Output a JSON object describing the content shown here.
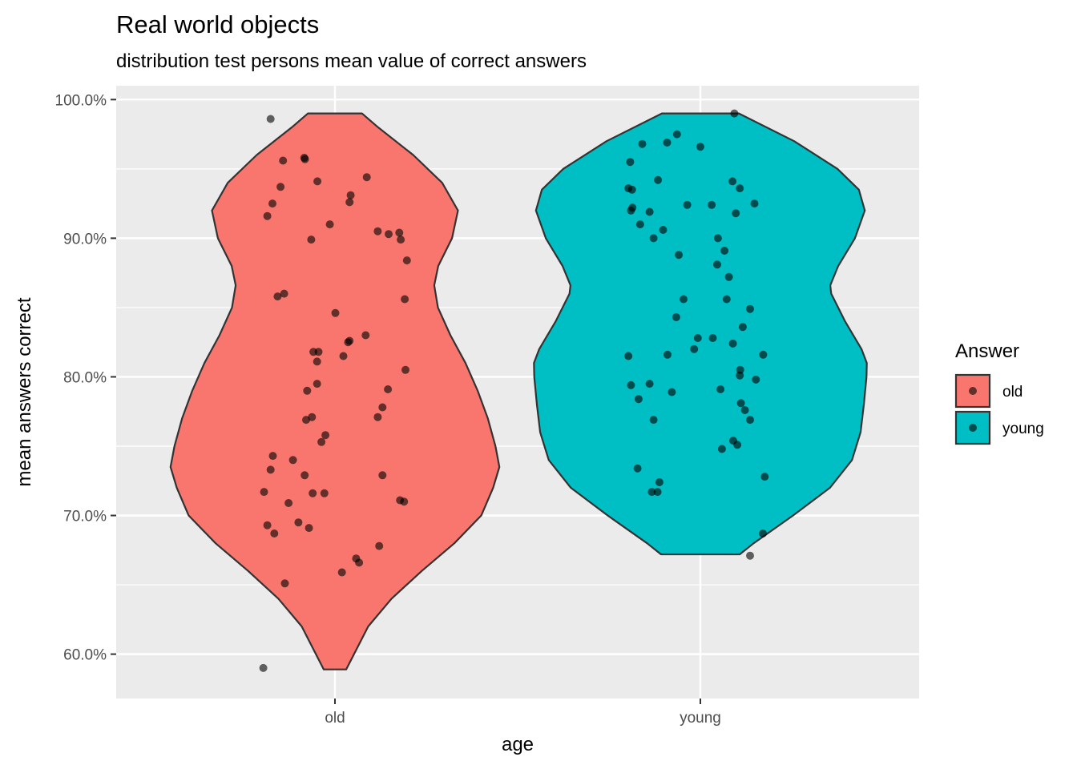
{
  "chart_data": {
    "type": "violin",
    "title": "Real world objects",
    "subtitle": "distribution test persons mean value of correct answers",
    "xlabel": "age",
    "ylabel": "mean answers correct",
    "categories": [
      "old",
      "young"
    ],
    "ylim": [
      0.568,
      1.01
    ],
    "y_ticks": [
      0.6,
      0.7,
      0.8,
      0.9,
      1.0
    ],
    "y_tick_labels": [
      "60.0%",
      "70.0%",
      "80.0%",
      "90.0%",
      "100.0%"
    ],
    "grid": true,
    "legend": {
      "title": "Answer",
      "placement": "right",
      "entries": [
        "old",
        "young"
      ]
    },
    "colors": {
      "old": "#F8766D",
      "young": "#00BFC4",
      "panel": "#EBEBEB",
      "outline": "#333333",
      "point": "#000000"
    },
    "violins": [
      {
        "name": "old",
        "profile": [
          [
            0.589,
            0.034
          ],
          [
            0.6,
            0.058
          ],
          [
            0.62,
            0.101
          ],
          [
            0.64,
            0.172
          ],
          [
            0.66,
            0.264
          ],
          [
            0.68,
            0.363
          ],
          [
            0.7,
            0.445
          ],
          [
            0.72,
            0.481
          ],
          [
            0.735,
            0.5
          ],
          [
            0.75,
            0.488
          ],
          [
            0.77,
            0.465
          ],
          [
            0.79,
            0.434
          ],
          [
            0.81,
            0.397
          ],
          [
            0.83,
            0.351
          ],
          [
            0.85,
            0.313
          ],
          [
            0.866,
            0.302
          ],
          [
            0.88,
            0.314
          ],
          [
            0.9,
            0.356
          ],
          [
            0.92,
            0.374
          ],
          [
            0.94,
            0.326
          ],
          [
            0.96,
            0.238
          ],
          [
            0.98,
            0.131
          ],
          [
            0.99,
            0.082
          ]
        ]
      },
      {
        "name": "young",
        "profile": [
          [
            0.672,
            0.12
          ],
          [
            0.68,
            0.162
          ],
          [
            0.7,
            0.282
          ],
          [
            0.72,
            0.394
          ],
          [
            0.74,
            0.461
          ],
          [
            0.76,
            0.487
          ],
          [
            0.78,
            0.497
          ],
          [
            0.8,
            0.505
          ],
          [
            0.81,
            0.506
          ],
          [
            0.82,
            0.49
          ],
          [
            0.84,
            0.44
          ],
          [
            0.86,
            0.398
          ],
          [
            0.866,
            0.395
          ],
          [
            0.88,
            0.419
          ],
          [
            0.9,
            0.47
          ],
          [
            0.92,
            0.5
          ],
          [
            0.935,
            0.482
          ],
          [
            0.95,
            0.417
          ],
          [
            0.97,
            0.285
          ],
          [
            0.99,
            0.117
          ]
        ]
      }
    ],
    "points": {
      "old": [
        [
          -0.176,
          0.986
        ],
        [
          -0.142,
          0.956
        ],
        [
          -0.084,
          0.958
        ],
        [
          -0.082,
          0.957
        ],
        [
          -0.149,
          0.937
        ],
        [
          -0.048,
          0.941
        ],
        [
          0.087,
          0.944
        ],
        [
          0.043,
          0.931
        ],
        [
          0.04,
          0.926
        ],
        [
          -0.171,
          0.925
        ],
        [
          -0.185,
          0.916
        ],
        [
          -0.014,
          0.91
        ],
        [
          0.117,
          0.905
        ],
        [
          0.147,
          0.903
        ],
        [
          0.176,
          0.904
        ],
        [
          0.18,
          0.899
        ],
        [
          -0.065,
          0.899
        ],
        [
          0.197,
          0.884
        ],
        [
          -0.157,
          0.858
        ],
        [
          -0.139,
          0.86
        ],
        [
          0.191,
          0.856
        ],
        [
          0.001,
          0.846
        ],
        [
          0.084,
          0.83
        ],
        [
          0.04,
          0.826
        ],
        [
          0.036,
          0.825
        ],
        [
          0.023,
          0.815
        ],
        [
          -0.059,
          0.818
        ],
        [
          -0.045,
          0.818
        ],
        [
          -0.049,
          0.811
        ],
        [
          0.193,
          0.805
        ],
        [
          -0.049,
          0.795
        ],
        [
          -0.076,
          0.79
        ],
        [
          0.145,
          0.791
        ],
        [
          0.13,
          0.778
        ],
        [
          0.117,
          0.771
        ],
        [
          -0.079,
          0.769
        ],
        [
          -0.063,
          0.771
        ],
        [
          -0.026,
          0.758
        ],
        [
          -0.037,
          0.753
        ],
        [
          -0.17,
          0.743
        ],
        [
          -0.115,
          0.74
        ],
        [
          -0.176,
          0.733
        ],
        [
          -0.083,
          0.729
        ],
        [
          0.13,
          0.729
        ],
        [
          -0.194,
          0.717
        ],
        [
          -0.061,
          0.716
        ],
        [
          -0.029,
          0.716
        ],
        [
          -0.127,
          0.709
        ],
        [
          0.178,
          0.711
        ],
        [
          0.189,
          0.71
        ],
        [
          -0.185,
          0.693
        ],
        [
          -0.1,
          0.695
        ],
        [
          -0.071,
          0.691
        ],
        [
          -0.166,
          0.687
        ],
        [
          0.121,
          0.678
        ],
        [
          0.058,
          0.669
        ],
        [
          0.066,
          0.666
        ],
        [
          0.019,
          0.659
        ],
        [
          -0.137,
          0.651
        ],
        [
          -0.196,
          0.59
        ]
      ],
      "young": [
        [
          0.093,
          0.99
        ],
        [
          -0.159,
          0.968
        ],
        [
          -0.064,
          0.975
        ],
        [
          -0.091,
          0.969
        ],
        [
          0.0,
          0.966
        ],
        [
          -0.192,
          0.955
        ],
        [
          -0.116,
          0.942
        ],
        [
          0.088,
          0.941
        ],
        [
          -0.197,
          0.936
        ],
        [
          -0.187,
          0.935
        ],
        [
          0.108,
          0.936
        ],
        [
          -0.186,
          0.922
        ],
        [
          -0.19,
          0.92
        ],
        [
          -0.139,
          0.919
        ],
        [
          -0.036,
          0.924
        ],
        [
          0.031,
          0.924
        ],
        [
          0.148,
          0.925
        ],
        [
          0.097,
          0.918
        ],
        [
          -0.165,
          0.91
        ],
        [
          -0.102,
          0.906
        ],
        [
          -0.128,
          0.9
        ],
        [
          0.048,
          0.9
        ],
        [
          0.066,
          0.891
        ],
        [
          -0.059,
          0.888
        ],
        [
          0.046,
          0.881
        ],
        [
          0.078,
          0.872
        ],
        [
          -0.046,
          0.856
        ],
        [
          0.072,
          0.856
        ],
        [
          -0.066,
          0.843
        ],
        [
          0.136,
          0.849
        ],
        [
          0.116,
          0.836
        ],
        [
          -0.007,
          0.828
        ],
        [
          0.034,
          0.828
        ],
        [
          0.089,
          0.824
        ],
        [
          -0.017,
          0.82
        ],
        [
          -0.09,
          0.816
        ],
        [
          -0.197,
          0.815
        ],
        [
          0.172,
          0.816
        ],
        [
          0.109,
          0.805
        ],
        [
          0.108,
          0.801
        ],
        [
          0.152,
          0.798
        ],
        [
          -0.139,
          0.795
        ],
        [
          -0.19,
          0.794
        ],
        [
          -0.169,
          0.784
        ],
        [
          -0.078,
          0.789
        ],
        [
          0.055,
          0.791
        ],
        [
          0.111,
          0.781
        ],
        [
          0.122,
          0.776
        ],
        [
          0.136,
          0.769
        ],
        [
          -0.128,
          0.769
        ],
        [
          0.09,
          0.754
        ],
        [
          0.101,
          0.751
        ],
        [
          0.059,
          0.748
        ],
        [
          -0.172,
          0.734
        ],
        [
          -0.112,
          0.724
        ],
        [
          -0.117,
          0.717
        ],
        [
          -0.133,
          0.717
        ],
        [
          0.176,
          0.728
        ],
        [
          0.171,
          0.687
        ],
        [
          0.136,
          0.671
        ]
      ]
    }
  }
}
